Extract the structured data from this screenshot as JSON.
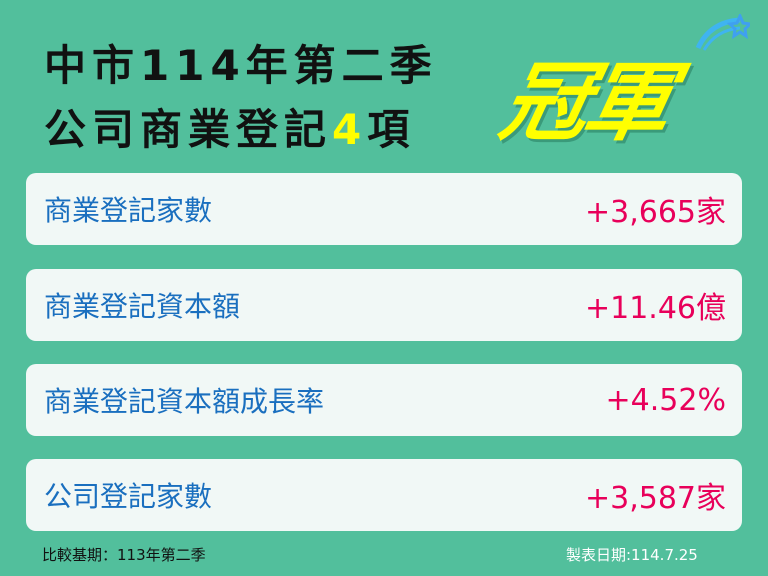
{
  "title": {
    "line1": "中市114年第二季",
    "line2_a": "公司商業登記",
    "line2_num": "4",
    "line2_b": "項",
    "badge": "冠軍"
  },
  "colors": {
    "background": "#52bf9c",
    "label": "#1a6fbf",
    "value": "#e8005a",
    "highlight": "#ffff00"
  },
  "items": [
    {
      "label": "商業登記家數",
      "value": "+3,665家"
    },
    {
      "label": "商業登記資本額",
      "value": "+11.46億"
    },
    {
      "label": "商業登記資本額成長率",
      "value": "+4.52%"
    },
    {
      "label": "公司登記家數",
      "value": "+3,587家"
    }
  ],
  "footer": {
    "baseline": "比較基期：113年第二季",
    "date": "製表日期:114.7.25"
  }
}
